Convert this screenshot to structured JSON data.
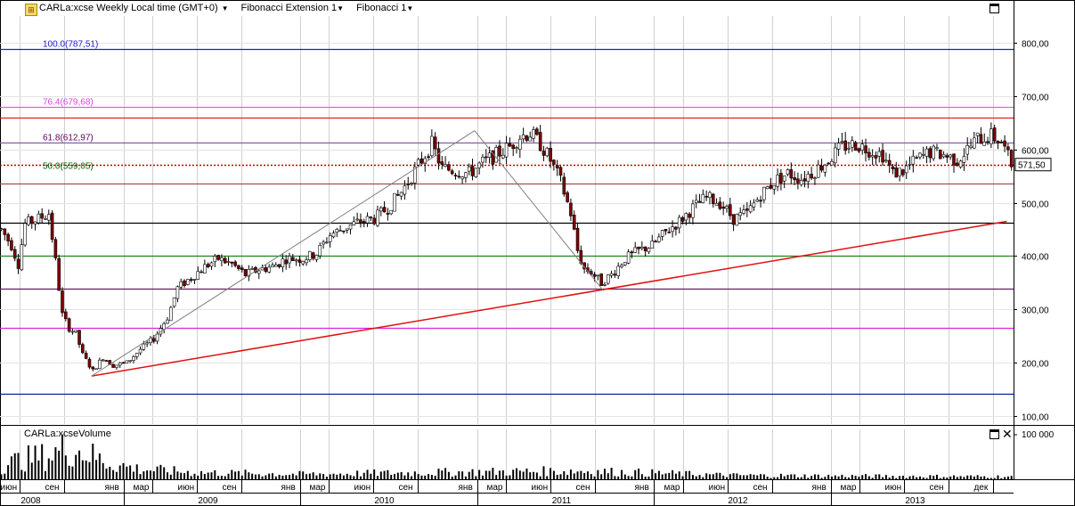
{
  "header": {
    "symbol_title": "CARLa:xcse Weekly Local time (GMT+0)",
    "indicator_1": "Fibonacci Extension 1",
    "indicator_2": "Fibonacci 1"
  },
  "volume_panel": {
    "title": "CARLa:xcseVolume",
    "axis_label": "100 000"
  },
  "colors": {
    "up_candle": "#ffffff",
    "down_candle": "#800000",
    "trendline": "#e01010",
    "grid": "#c8c8c8"
  },
  "chart_data": {
    "type": "candlestick",
    "price_axis": {
      "ylim": [
        85,
        850
      ],
      "ticks": [
        "800,00",
        "700,00",
        "600,00",
        "500,00",
        "400,00",
        "300,00",
        "200,00",
        "100,00"
      ]
    },
    "last_price_label": "571,50",
    "last_price": 571.5,
    "horizontal_levels": [
      {
        "price": 787.51,
        "color": "#2020c0",
        "label": "100.0(787,51)",
        "label_color": "#2020c0"
      },
      {
        "price": 679.68,
        "color": "#e060e0",
        "label": "76.4(679,68)",
        "label_color": "#e040e0"
      },
      {
        "price": 659,
        "color": "#e02020",
        "label": ""
      },
      {
        "price": 612.97,
        "color": "#8060a0",
        "label": "61.8(612,97)",
        "label_color": "#600060"
      },
      {
        "price": 571.5,
        "color": "#c00000",
        "dotted": true,
        "label": ""
      },
      {
        "price": 559.05,
        "color": "#ffffff",
        "label": "50.0(559,05)",
        "label_color": "#006000"
      },
      {
        "price": 536,
        "color": "#a05050",
        "label": ""
      },
      {
        "price": 462,
        "color": "#000000",
        "label": ""
      },
      {
        "price": 400,
        "color": "#208020",
        "label": ""
      },
      {
        "price": 339,
        "color": "#602060",
        "label": ""
      },
      {
        "price": 265,
        "color": "#e020e0",
        "label": ""
      },
      {
        "price": 141,
        "color": "#0020a0",
        "label": ""
      }
    ],
    "trendline": {
      "from": {
        "x": "2008-10-27",
        "y": 175
      },
      "to": {
        "x": "2013-12-30",
        "y": 465
      }
    },
    "fib_zigzag": [
      {
        "x": "2008-10-27",
        "y": 175
      },
      {
        "x": "2010-12-27",
        "y": 635
      },
      {
        "x": "2011-09-19",
        "y": 335
      }
    ],
    "month_ticks": [
      {
        "label": "июн",
        "date": "2008-06-01"
      },
      {
        "label": "сен",
        "date": "2008-09-01"
      },
      {
        "label": "янв",
        "date": "2009-01-01"
      },
      {
        "label": "мар",
        "date": "2009-03-01"
      },
      {
        "label": "июн",
        "date": "2009-06-01"
      },
      {
        "label": "сен",
        "date": "2009-09-01"
      },
      {
        "label": "янв",
        "date": "2010-01-01"
      },
      {
        "label": "мар",
        "date": "2010-03-01"
      },
      {
        "label": "июн",
        "date": "2010-06-01"
      },
      {
        "label": "сен",
        "date": "2010-09-01"
      },
      {
        "label": "янв",
        "date": "2011-01-01"
      },
      {
        "label": "мар",
        "date": "2011-03-01"
      },
      {
        "label": "июн",
        "date": "2011-06-01"
      },
      {
        "label": "сен",
        "date": "2011-09-01"
      },
      {
        "label": "янв",
        "date": "2012-01-01"
      },
      {
        "label": "мар",
        "date": "2012-03-01"
      },
      {
        "label": "июн",
        "date": "2012-06-01"
      },
      {
        "label": "сен",
        "date": "2012-09-01"
      },
      {
        "label": "янв",
        "date": "2013-01-01"
      },
      {
        "label": "мар",
        "date": "2013-03-01"
      },
      {
        "label": "июн",
        "date": "2013-06-01"
      },
      {
        "label": "сен",
        "date": "2013-09-01"
      },
      {
        "label": "дек",
        "date": "2013-12-01"
      }
    ],
    "year_ticks": [
      {
        "label": "2008",
        "date": "2008-01-01"
      },
      {
        "label": "2009",
        "date": "2009-01-01"
      },
      {
        "label": "2010",
        "date": "2010-01-01"
      },
      {
        "label": "2011",
        "date": "2011-01-01"
      },
      {
        "label": "2012",
        "date": "2012-01-01"
      },
      {
        "label": "2013",
        "date": "2013-01-01"
      }
    ],
    "x_range": [
      "2008-04-21",
      "2014-01-13"
    ],
    "price_path": [
      [
        "2008-04-21",
        450
      ],
      [
        "2008-05-12",
        420
      ],
      [
        "2008-05-26",
        385
      ],
      [
        "2008-06-09",
        460
      ],
      [
        "2008-07-07",
        470
      ],
      [
        "2008-07-28",
        480
      ],
      [
        "2008-08-11",
        390
      ],
      [
        "2008-08-25",
        290
      ],
      [
        "2008-09-08",
        265
      ],
      [
        "2008-09-22",
        255
      ],
      [
        "2008-10-06",
        215
      ],
      [
        "2008-10-27",
        185
      ],
      [
        "2008-11-17",
        210
      ],
      [
        "2008-12-08",
        195
      ],
      [
        "2009-01-05",
        200
      ],
      [
        "2009-02-02",
        225
      ],
      [
        "2009-03-02",
        245
      ],
      [
        "2009-03-30",
        285
      ],
      [
        "2009-04-20",
        340
      ],
      [
        "2009-05-18",
        360
      ],
      [
        "2009-06-15",
        380
      ],
      [
        "2009-07-13",
        395
      ],
      [
        "2009-08-10",
        385
      ],
      [
        "2009-09-07",
        365
      ],
      [
        "2009-10-05",
        375
      ],
      [
        "2009-11-02",
        380
      ],
      [
        "2009-11-30",
        395
      ],
      [
        "2010-01-04",
        395
      ],
      [
        "2010-02-01",
        405
      ],
      [
        "2010-03-01",
        440
      ],
      [
        "2010-04-05",
        455
      ],
      [
        "2010-05-03",
        465
      ],
      [
        "2010-05-31",
        470
      ],
      [
        "2010-06-28",
        490
      ],
      [
        "2010-07-26",
        520
      ],
      [
        "2010-08-23",
        560
      ],
      [
        "2010-09-13",
        590
      ],
      [
        "2010-09-27",
        610
      ],
      [
        "2010-10-18",
        565
      ],
      [
        "2010-11-15",
        560
      ],
      [
        "2010-12-13",
        555
      ],
      [
        "2011-01-10",
        575
      ],
      [
        "2011-02-07",
        590
      ],
      [
        "2011-03-07",
        605
      ],
      [
        "2011-03-28",
        625
      ],
      [
        "2011-04-18",
        630
      ],
      [
        "2011-05-09",
        610
      ],
      [
        "2011-05-30",
        580
      ],
      [
        "2011-06-20",
        540
      ],
      [
        "2011-07-11",
        480
      ],
      [
        "2011-07-25",
        410
      ],
      [
        "2011-08-08",
        375
      ],
      [
        "2011-08-22",
        370
      ],
      [
        "2011-09-12",
        350
      ],
      [
        "2011-10-03",
        365
      ],
      [
        "2011-10-31",
        395
      ],
      [
        "2011-11-28",
        410
      ],
      [
        "2011-12-26",
        420
      ],
      [
        "2012-01-23",
        445
      ],
      [
        "2012-02-20",
        465
      ],
      [
        "2012-03-19",
        490
      ],
      [
        "2012-04-16",
        510
      ],
      [
        "2012-05-14",
        500
      ],
      [
        "2012-06-11",
        470
      ],
      [
        "2012-07-09",
        480
      ],
      [
        "2012-08-06",
        515
      ],
      [
        "2012-09-03",
        540
      ],
      [
        "2012-10-01",
        555
      ],
      [
        "2012-10-29",
        545
      ],
      [
        "2012-11-26",
        560
      ],
      [
        "2012-12-24",
        580
      ],
      [
        "2013-01-21",
        605
      ],
      [
        "2013-02-18",
        610
      ],
      [
        "2013-03-18",
        600
      ],
      [
        "2013-04-15",
        590
      ],
      [
        "2013-05-06",
        555
      ],
      [
        "2013-05-27",
        560
      ],
      [
        "2013-06-24",
        580
      ],
      [
        "2013-07-22",
        595
      ],
      [
        "2013-08-19",
        590
      ],
      [
        "2013-09-16",
        580
      ],
      [
        "2013-10-07",
        600
      ],
      [
        "2013-10-28",
        620
      ],
      [
        "2013-11-25",
        625
      ],
      [
        "2013-12-16",
        615
      ],
      [
        "2014-01-06",
        571.5
      ]
    ],
    "volume_path": [
      [
        "2008-04-21",
        40000
      ],
      [
        "2008-06-02",
        60000
      ],
      [
        "2008-07-28",
        70000
      ],
      [
        "2008-09-01",
        95000
      ],
      [
        "2008-10-13",
        80000
      ],
      [
        "2008-11-24",
        50000
      ],
      [
        "2009-02-02",
        30000
      ],
      [
        "2009-06-01",
        20000
      ],
      [
        "2010-01-04",
        15000
      ],
      [
        "2010-09-06",
        20000
      ],
      [
        "2011-08-01",
        25000
      ],
      [
        "2012-06-04",
        12000
      ],
      [
        "2013-01-07",
        10000
      ],
      [
        "2014-01-06",
        8000
      ]
    ]
  }
}
